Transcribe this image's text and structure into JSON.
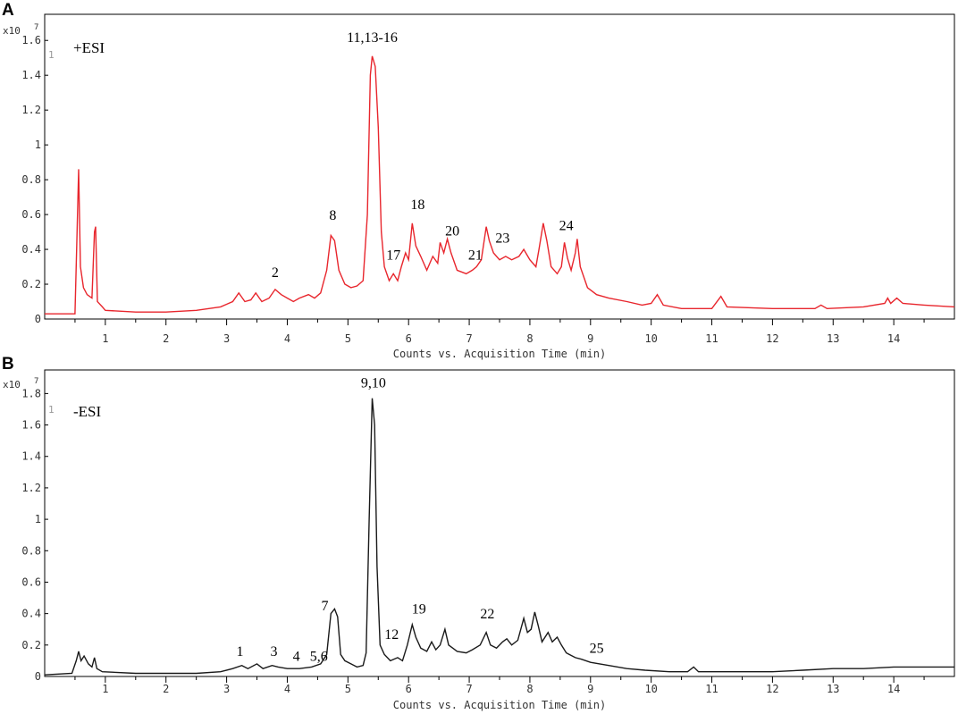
{
  "chart_data": [
    {
      "type": "line",
      "panel": "A",
      "mode_label": "+ESI",
      "series_index": "1",
      "y_scale_label": "x10",
      "y_scale_exp": "7",
      "xlabel": "Counts vs. Acquisition Time (min)",
      "xlim": [
        0,
        15
      ],
      "ylim": [
        0,
        1.75
      ],
      "x_ticks": [
        1,
        2,
        3,
        4,
        5,
        6,
        7,
        8,
        9,
        10,
        11,
        12,
        13,
        14
      ],
      "y_ticks": [
        0,
        0.2,
        0.4,
        0.6,
        0.8,
        1,
        1.2,
        1.4,
        1.6
      ],
      "y_tick_labels": [
        "0",
        "0.2",
        "0.4",
        "0.6",
        "0.8",
        "1",
        "1.2",
        "1.4",
        "1.6"
      ],
      "color": "#e8262d",
      "series": [
        {
          "points": [
            [
              0,
              0.03
            ],
            [
              0.5,
              0.03
            ],
            [
              0.53,
              0.45
            ],
            [
              0.56,
              0.86
            ],
            [
              0.59,
              0.3
            ],
            [
              0.64,
              0.18
            ],
            [
              0.7,
              0.14
            ],
            [
              0.78,
              0.12
            ],
            [
              0.82,
              0.5
            ],
            [
              0.84,
              0.53
            ],
            [
              0.87,
              0.1
            ],
            [
              0.95,
              0.07
            ],
            [
              1,
              0.05
            ],
            [
              1.5,
              0.04
            ],
            [
              2,
              0.04
            ],
            [
              2.5,
              0.05
            ],
            [
              2.9,
              0.07
            ],
            [
              3.1,
              0.1
            ],
            [
              3.2,
              0.15
            ],
            [
              3.3,
              0.1
            ],
            [
              3.4,
              0.11
            ],
            [
              3.48,
              0.15
            ],
            [
              3.58,
              0.1
            ],
            [
              3.7,
              0.12
            ],
            [
              3.8,
              0.17
            ],
            [
              3.9,
              0.14
            ],
            [
              4.0,
              0.12
            ],
            [
              4.1,
              0.1
            ],
            [
              4.2,
              0.12
            ],
            [
              4.35,
              0.14
            ],
            [
              4.45,
              0.12
            ],
            [
              4.55,
              0.15
            ],
            [
              4.65,
              0.28
            ],
            [
              4.72,
              0.48
            ],
            [
              4.78,
              0.45
            ],
            [
              4.85,
              0.28
            ],
            [
              4.95,
              0.2
            ],
            [
              5.05,
              0.18
            ],
            [
              5.15,
              0.19
            ],
            [
              5.25,
              0.22
            ],
            [
              5.32,
              0.6
            ],
            [
              5.37,
              1.4
            ],
            [
              5.4,
              1.51
            ],
            [
              5.45,
              1.45
            ],
            [
              5.5,
              1.1
            ],
            [
              5.55,
              0.5
            ],
            [
              5.6,
              0.3
            ],
            [
              5.68,
              0.22
            ],
            [
              5.75,
              0.26
            ],
            [
              5.82,
              0.22
            ],
            [
              5.88,
              0.3
            ],
            [
              5.95,
              0.38
            ],
            [
              6.0,
              0.34
            ],
            [
              6.06,
              0.55
            ],
            [
              6.12,
              0.42
            ],
            [
              6.2,
              0.36
            ],
            [
              6.3,
              0.28
            ],
            [
              6.4,
              0.36
            ],
            [
              6.48,
              0.32
            ],
            [
              6.52,
              0.44
            ],
            [
              6.58,
              0.38
            ],
            [
              6.64,
              0.46
            ],
            [
              6.7,
              0.38
            ],
            [
              6.8,
              0.28
            ],
            [
              6.95,
              0.26
            ],
            [
              7.05,
              0.28
            ],
            [
              7.12,
              0.3
            ],
            [
              7.2,
              0.34
            ],
            [
              7.28,
              0.53
            ],
            [
              7.33,
              0.45
            ],
            [
              7.4,
              0.38
            ],
            [
              7.5,
              0.34
            ],
            [
              7.6,
              0.36
            ],
            [
              7.7,
              0.34
            ],
            [
              7.82,
              0.36
            ],
            [
              7.9,
              0.4
            ],
            [
              8.0,
              0.34
            ],
            [
              8.1,
              0.3
            ],
            [
              8.15,
              0.4
            ],
            [
              8.22,
              0.55
            ],
            [
              8.28,
              0.45
            ],
            [
              8.35,
              0.3
            ],
            [
              8.45,
              0.26
            ],
            [
              8.52,
              0.3
            ],
            [
              8.57,
              0.44
            ],
            [
              8.62,
              0.35
            ],
            [
              8.68,
              0.28
            ],
            [
              8.75,
              0.38
            ],
            [
              8.78,
              0.46
            ],
            [
              8.83,
              0.3
            ],
            [
              8.95,
              0.18
            ],
            [
              9.1,
              0.14
            ],
            [
              9.3,
              0.12
            ],
            [
              9.6,
              0.1
            ],
            [
              9.85,
              0.08
            ],
            [
              10.0,
              0.09
            ],
            [
              10.1,
              0.14
            ],
            [
              10.2,
              0.08
            ],
            [
              10.5,
              0.06
            ],
            [
              11.0,
              0.06
            ],
            [
              11.15,
              0.13
            ],
            [
              11.25,
              0.07
            ],
            [
              12.0,
              0.06
            ],
            [
              12.7,
              0.06
            ],
            [
              12.8,
              0.08
            ],
            [
              12.9,
              0.06
            ],
            [
              13.5,
              0.07
            ],
            [
              13.85,
              0.09
            ],
            [
              13.9,
              0.12
            ],
            [
              13.95,
              0.09
            ],
            [
              14.05,
              0.12
            ],
            [
              14.15,
              0.09
            ],
            [
              14.5,
              0.08
            ],
            [
              15.0,
              0.07
            ]
          ]
        }
      ],
      "annotations": [
        {
          "text": "2",
          "x": 3.8,
          "y": 0.24
        },
        {
          "text": "8",
          "x": 4.75,
          "y": 0.57
        },
        {
          "text": "11,13-16",
          "x": 5.4,
          "y": 1.59
        },
        {
          "text": "17",
          "x": 5.75,
          "y": 0.34
        },
        {
          "text": "18",
          "x": 6.15,
          "y": 0.63
        },
        {
          "text": "20",
          "x": 6.72,
          "y": 0.48
        },
        {
          "text": "21",
          "x": 7.1,
          "y": 0.34
        },
        {
          "text": "23",
          "x": 7.55,
          "y": 0.44
        },
        {
          "text": "24",
          "x": 8.6,
          "y": 0.51
        }
      ]
    },
    {
      "type": "line",
      "panel": "B",
      "mode_label": "-ESI",
      "series_index": "1",
      "y_scale_label": "x10",
      "y_scale_exp": "7",
      "xlabel": "Counts vs. Acquisition Time (min)",
      "xlim": [
        0,
        15
      ],
      "ylim": [
        0,
        1.95
      ],
      "x_ticks": [
        1,
        2,
        3,
        4,
        5,
        6,
        7,
        8,
        9,
        10,
        11,
        12,
        13,
        14
      ],
      "y_ticks": [
        0,
        0.2,
        0.4,
        0.6,
        0.8,
        1,
        1.2,
        1.4,
        1.6,
        1.8
      ],
      "y_tick_labels": [
        "0",
        "0.2",
        "0.4",
        "0.6",
        "0.8",
        "1",
        "1.2",
        "1.4",
        "1.6",
        "1.8"
      ],
      "color": "#1a1a1a",
      "series": [
        {
          "points": [
            [
              0,
              0.01
            ],
            [
              0.45,
              0.02
            ],
            [
              0.52,
              0.1
            ],
            [
              0.56,
              0.16
            ],
            [
              0.6,
              0.1
            ],
            [
              0.65,
              0.13
            ],
            [
              0.72,
              0.08
            ],
            [
              0.78,
              0.06
            ],
            [
              0.82,
              0.12
            ],
            [
              0.86,
              0.05
            ],
            [
              0.95,
              0.03
            ],
            [
              1.5,
              0.02
            ],
            [
              2.0,
              0.02
            ],
            [
              2.5,
              0.02
            ],
            [
              2.9,
              0.03
            ],
            [
              3.1,
              0.05
            ],
            [
              3.25,
              0.07
            ],
            [
              3.35,
              0.05
            ],
            [
              3.5,
              0.08
            ],
            [
              3.6,
              0.05
            ],
            [
              3.75,
              0.07
            ],
            [
              3.85,
              0.06
            ],
            [
              4.0,
              0.05
            ],
            [
              4.2,
              0.05
            ],
            [
              4.4,
              0.06
            ],
            [
              4.55,
              0.08
            ],
            [
              4.65,
              0.14
            ],
            [
              4.72,
              0.4
            ],
            [
              4.78,
              0.43
            ],
            [
              4.83,
              0.38
            ],
            [
              4.88,
              0.14
            ],
            [
              4.95,
              0.1
            ],
            [
              5.05,
              0.08
            ],
            [
              5.15,
              0.06
            ],
            [
              5.25,
              0.07
            ],
            [
              5.3,
              0.15
            ],
            [
              5.35,
              1.0
            ],
            [
              5.4,
              1.77
            ],
            [
              5.44,
              1.6
            ],
            [
              5.48,
              0.7
            ],
            [
              5.53,
              0.2
            ],
            [
              5.6,
              0.14
            ],
            [
              5.7,
              0.1
            ],
            [
              5.82,
              0.12
            ],
            [
              5.9,
              0.1
            ],
            [
              5.98,
              0.2
            ],
            [
              6.06,
              0.33
            ],
            [
              6.12,
              0.25
            ],
            [
              6.2,
              0.18
            ],
            [
              6.3,
              0.16
            ],
            [
              6.38,
              0.22
            ],
            [
              6.45,
              0.17
            ],
            [
              6.52,
              0.2
            ],
            [
              6.6,
              0.3
            ],
            [
              6.66,
              0.2
            ],
            [
              6.8,
              0.16
            ],
            [
              6.95,
              0.15
            ],
            [
              7.05,
              0.17
            ],
            [
              7.18,
              0.2
            ],
            [
              7.28,
              0.28
            ],
            [
              7.35,
              0.2
            ],
            [
              7.45,
              0.18
            ],
            [
              7.55,
              0.22
            ],
            [
              7.62,
              0.24
            ],
            [
              7.7,
              0.2
            ],
            [
              7.8,
              0.23
            ],
            [
              7.9,
              0.37
            ],
            [
              7.96,
              0.28
            ],
            [
              8.02,
              0.3
            ],
            [
              8.08,
              0.41
            ],
            [
              8.14,
              0.32
            ],
            [
              8.2,
              0.22
            ],
            [
              8.3,
              0.28
            ],
            [
              8.37,
              0.22
            ],
            [
              8.45,
              0.25
            ],
            [
              8.52,
              0.2
            ],
            [
              8.6,
              0.15
            ],
            [
              8.75,
              0.12
            ],
            [
              8.85,
              0.11
            ],
            [
              9.0,
              0.09
            ],
            [
              9.3,
              0.07
            ],
            [
              9.6,
              0.05
            ],
            [
              9.9,
              0.04
            ],
            [
              10.3,
              0.03
            ],
            [
              10.6,
              0.03
            ],
            [
              10.7,
              0.06
            ],
            [
              10.78,
              0.03
            ],
            [
              11.5,
              0.03
            ],
            [
              12.0,
              0.03
            ],
            [
              12.5,
              0.04
            ],
            [
              13.0,
              0.05
            ],
            [
              13.5,
              0.05
            ],
            [
              14.0,
              0.06
            ],
            [
              14.5,
              0.06
            ],
            [
              15.0,
              0.06
            ]
          ]
        }
      ],
      "annotations": [
        {
          "text": "1",
          "x": 3.22,
          "y": 0.13
        },
        {
          "text": "3",
          "x": 3.78,
          "y": 0.13
        },
        {
          "text": "4",
          "x": 4.15,
          "y": 0.1
        },
        {
          "text": "5,6",
          "x": 4.52,
          "y": 0.1
        },
        {
          "text": "7",
          "x": 4.62,
          "y": 0.42
        },
        {
          "text": "9,10",
          "x": 5.42,
          "y": 1.84
        },
        {
          "text": "12",
          "x": 5.72,
          "y": 0.24
        },
        {
          "text": "19",
          "x": 6.17,
          "y": 0.4
        },
        {
          "text": "22",
          "x": 7.3,
          "y": 0.37
        },
        {
          "text": "25",
          "x": 9.1,
          "y": 0.15
        }
      ]
    }
  ]
}
